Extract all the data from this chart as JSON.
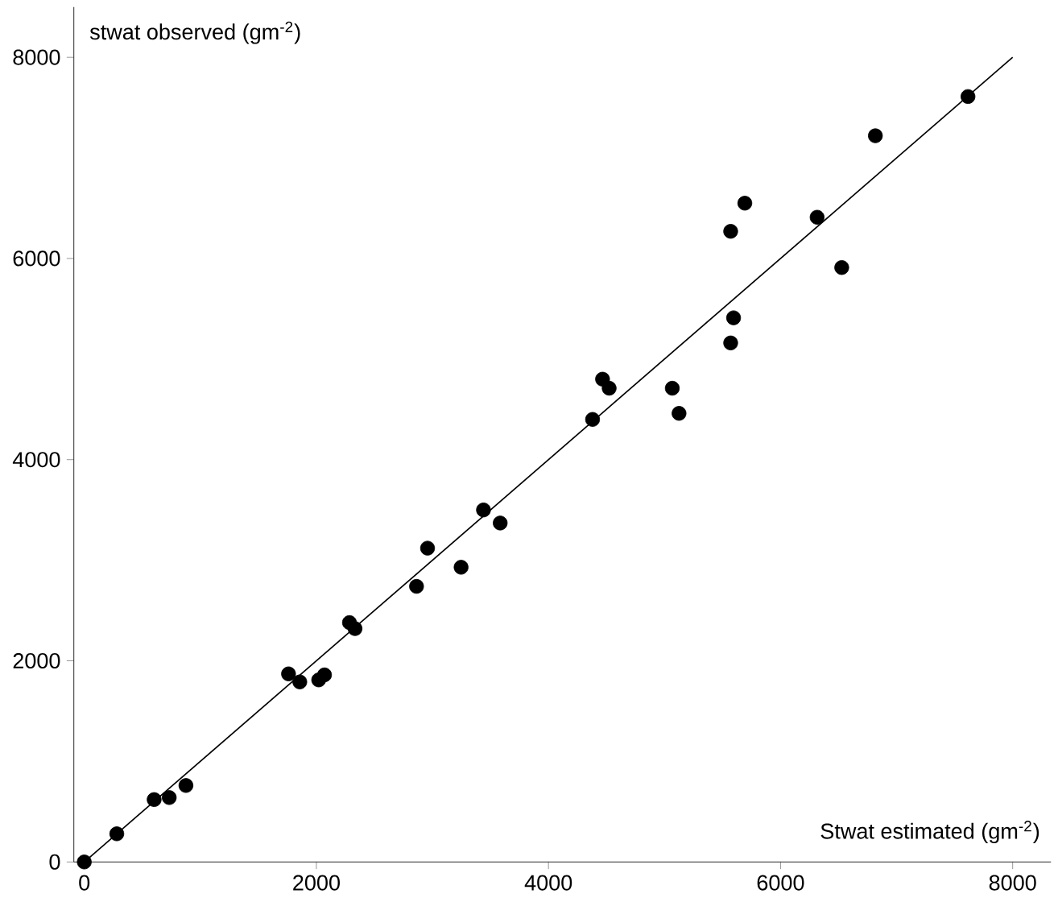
{
  "chart_data": {
    "type": "scatter",
    "xlabel": "Stwat estimated (gm$^{-2}$)",
    "ylabel": "stwat observed (gm$^{-2}$)",
    "xlim": [
      -90,
      8330
    ],
    "ylim": [
      0,
      8500
    ],
    "xticks": [
      0,
      2000,
      4000,
      6000,
      8000
    ],
    "yticks": [
      0,
      2000,
      4000,
      6000,
      8000
    ],
    "grid": false,
    "marker": "circle",
    "series": [
      {
        "color": "#000000",
        "x": [
          0,
          280,
          602,
          732,
          876,
          1760,
          1857,
          2020,
          2070,
          2285,
          2333,
          2863,
          2958,
          3247,
          3440,
          3584,
          4380,
          4466,
          4523,
          5067,
          5125,
          5570,
          5595,
          5570,
          5692,
          6315,
          6527,
          6817,
          7615
        ],
        "values": [
          0,
          280,
          620,
          640,
          760,
          1870,
          1790,
          1810,
          1860,
          2380,
          2320,
          2740,
          3120,
          2930,
          3500,
          3370,
          4400,
          4800,
          4710,
          4710,
          4460,
          5160,
          5410,
          6270,
          6550,
          6410,
          5910,
          7220,
          7610
        ]
      },
      {
        "type": "line",
        "marker": "none",
        "color": "#000000",
        "x": [
          0,
          8000
        ],
        "values": [
          0,
          8000
        ]
      }
    ]
  }
}
